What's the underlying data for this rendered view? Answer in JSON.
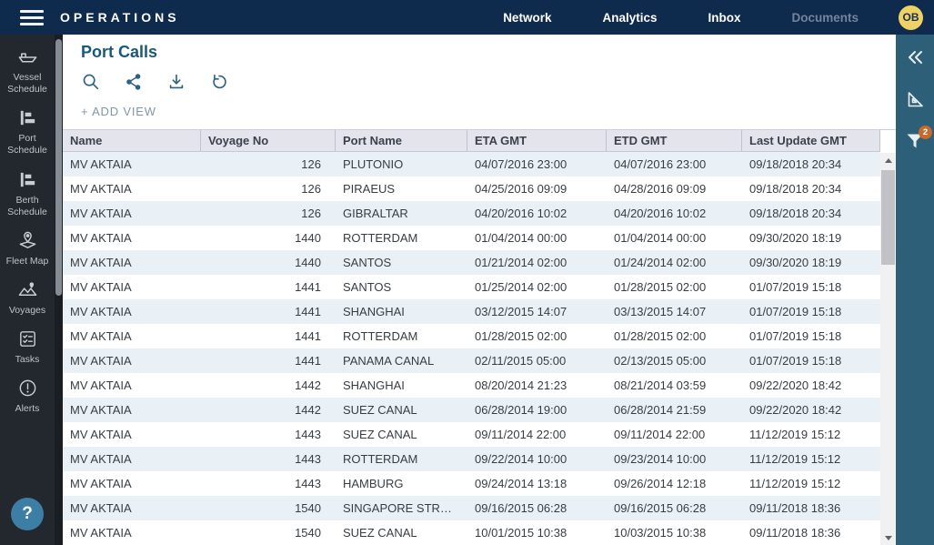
{
  "nav": {
    "brand": "OPERATIONS",
    "items": [
      {
        "label": "Network"
      },
      {
        "label": "Analytics"
      },
      {
        "label": "Inbox"
      },
      {
        "label": "Documents"
      }
    ],
    "avatar_initials": "OB"
  },
  "sidebar": {
    "items": [
      {
        "label": "Vessel Schedule",
        "icon": "ship-icon"
      },
      {
        "label": "Port Schedule",
        "icon": "gantt-icon"
      },
      {
        "label": "Berth Schedule",
        "icon": "gantt-icon"
      },
      {
        "label": "Fleet Map",
        "icon": "map-pin-icon"
      },
      {
        "label": "Voyages",
        "icon": "route-map-icon"
      },
      {
        "label": "Tasks",
        "icon": "checklist-icon"
      },
      {
        "label": "Alerts",
        "icon": "alert-icon"
      }
    ],
    "help_label": "?"
  },
  "main": {
    "title": "Port Calls",
    "toolbar_icons": [
      "search-icon",
      "share-icon",
      "download-icon",
      "undo-icon"
    ],
    "add_view_label": "+ ADD VIEW"
  },
  "table": {
    "columns": [
      "Name",
      "Voyage No",
      "Port Name",
      "ETA GMT",
      "ETD GMT",
      "Last Update GMT"
    ],
    "rows": [
      [
        "MV AKTAIA",
        "126",
        "PLUTONIO",
        "04/07/2016 23:00",
        "04/07/2016 23:00",
        "09/18/2018 20:34"
      ],
      [
        "MV AKTAIA",
        "126",
        "PIRAEUS",
        "04/25/2016 09:09",
        "04/28/2016 09:09",
        "09/18/2018 20:34"
      ],
      [
        "MV AKTAIA",
        "126",
        "GIBRALTAR",
        "04/20/2016 10:02",
        "04/20/2016 10:02",
        "09/18/2018 20:34"
      ],
      [
        "MV AKTAIA",
        "1440",
        "ROTTERDAM",
        "01/04/2014 00:00",
        "01/04/2014 00:00",
        "09/30/2020 18:19"
      ],
      [
        "MV AKTAIA",
        "1440",
        "SANTOS",
        "01/21/2014 02:00",
        "01/24/2014 02:00",
        "09/30/2020 18:19"
      ],
      [
        "MV AKTAIA",
        "1441",
        "SANTOS",
        "01/25/2014 02:00",
        "01/28/2015 02:00",
        "01/07/2019 15:18"
      ],
      [
        "MV AKTAIA",
        "1441",
        "SHANGHAI",
        "03/12/2015 14:07",
        "03/13/2015 14:07",
        "01/07/2019 15:18"
      ],
      [
        "MV AKTAIA",
        "1441",
        "ROTTERDAM",
        "01/28/2015 02:00",
        "01/28/2015 02:00",
        "01/07/2019 15:18"
      ],
      [
        "MV AKTAIA",
        "1441",
        "PANAMA CANAL",
        "02/11/2015 05:00",
        "02/13/2015 05:00",
        "01/07/2019 15:18"
      ],
      [
        "MV AKTAIA",
        "1442",
        "SHANGHAI",
        "08/20/2014 21:23",
        "08/21/2014 03:59",
        "09/22/2020 18:42"
      ],
      [
        "MV AKTAIA",
        "1442",
        "SUEZ CANAL",
        "06/28/2014 19:00",
        "06/28/2014 21:59",
        "09/22/2020 18:42"
      ],
      [
        "MV AKTAIA",
        "1443",
        "SUEZ CANAL",
        "09/11/2014 22:00",
        "09/11/2014 22:00",
        "11/12/2019 15:12"
      ],
      [
        "MV AKTAIA",
        "1443",
        "ROTTERDAM",
        "09/22/2014 10:00",
        "09/23/2014 10:00",
        "11/12/2019 15:12"
      ],
      [
        "MV AKTAIA",
        "1443",
        "HAMBURG",
        "09/24/2014 13:18",
        "09/26/2014 12:18",
        "11/12/2019 15:12"
      ],
      [
        "MV AKTAIA",
        "1540",
        "SINGAPORE STR…",
        "09/16/2015 06:28",
        "09/16/2015 06:28",
        "09/11/2018 18:36"
      ],
      [
        "MV AKTAIA",
        "1540",
        "SUEZ CANAL",
        "10/01/2015 10:38",
        "10/03/2015 10:38",
        "09/11/2018 18:36"
      ]
    ]
  },
  "right_rail": {
    "icons": [
      "collapse-chevrons-icon",
      "set-square-icon",
      "filter-funnel-icon"
    ],
    "filter_badge_count": "2"
  },
  "colors": {
    "nav_bg": "#0e2a4d",
    "sidebar_bg": "#23282e",
    "right_rail_bg": "#2d6078",
    "avatar_bg": "#f0d264",
    "title_text": "#19587a",
    "header_row_bg": "#e4e4ed",
    "row_alt_bg": "#eaf1f6",
    "badge_bg": "#c96a2a",
    "help_bg": "#3d7ea4"
  }
}
